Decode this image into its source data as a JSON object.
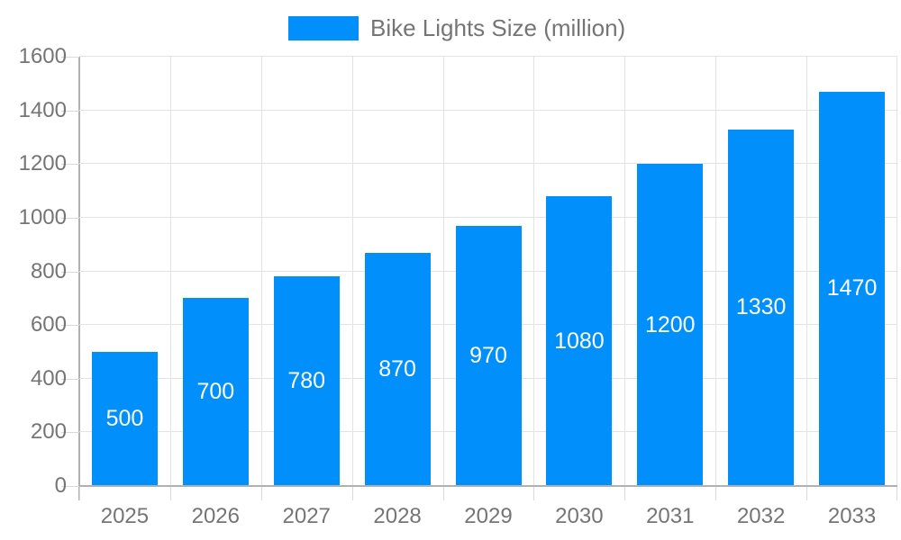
{
  "legend": {
    "label": "Bike Lights Size (million)"
  },
  "chart_data": {
    "type": "bar",
    "title": "Bike Lights Size (million)",
    "series_name": "Bike Lights Size (million)",
    "categories": [
      "2025",
      "2026",
      "2027",
      "2028",
      "2029",
      "2030",
      "2031",
      "2032",
      "2033"
    ],
    "values": [
      500,
      700,
      780,
      870,
      970,
      1080,
      1200,
      1330,
      1470
    ],
    "xlabel": "",
    "ylabel": "",
    "ylim": [
      0,
      1600
    ],
    "yticks": [
      0,
      200,
      400,
      600,
      800,
      1000,
      1200,
      1400,
      1600
    ],
    "grid": true,
    "legend_position": "top",
    "value_labels": "inside-center"
  },
  "colors": {
    "bar": "#008FFB",
    "axis_line": "#b0b0b0",
    "gridline": "#e3e3e3",
    "tick": "#d9d9d9",
    "axis_label": "#757575",
    "value_label": "#ffffff",
    "background": "#ffffff"
  }
}
